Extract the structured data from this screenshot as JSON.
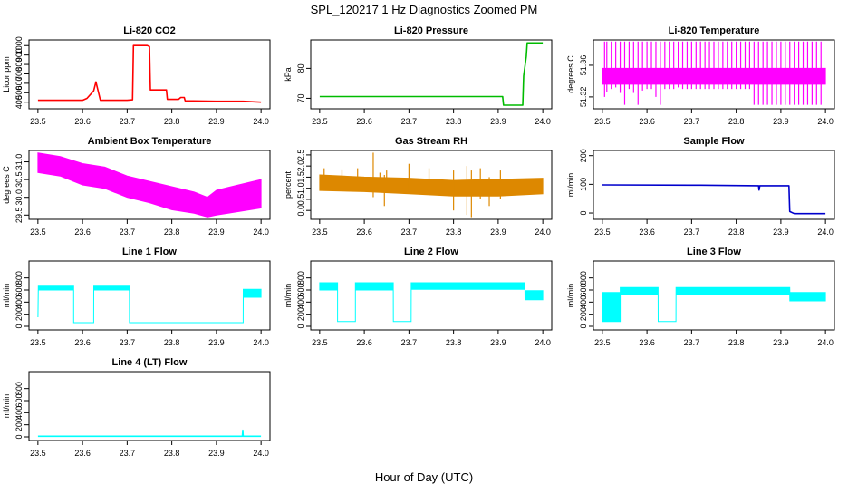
{
  "figure": {
    "title": "SPL_120217  1 Hz Diagnostics Zoomed PM",
    "xlabel": "Hour of Day (UTC)"
  },
  "chart_data": [
    {
      "id": "co2",
      "type": "line",
      "title": "Li-820 CO2",
      "ylabel": "Licor ppm",
      "color": "#ff0000",
      "xlim": [
        23.48,
        24.02
      ],
      "xticks": [
        23.5,
        23.6,
        23.7,
        23.8,
        23.9,
        24.0
      ],
      "xticklabels": [
        "23.5",
        "23.6",
        "23.7",
        "23.8",
        "23.9",
        "24.0"
      ],
      "ylim": [
        330,
        1060
      ],
      "yticks": [
        400,
        500,
        600,
        700,
        800,
        900,
        1000
      ],
      "yticklabels": [
        "400",
        "500",
        "600",
        "700",
        "800",
        "900",
        "1000"
      ],
      "series": [
        {
          "name": "CO2",
          "band": false,
          "x": [
            23.5,
            23.6,
            23.61,
            23.625,
            23.63,
            23.64,
            23.7,
            23.712,
            23.714,
            23.745,
            23.75,
            23.752,
            23.788,
            23.79,
            23.815,
            23.82,
            23.828,
            23.83,
            23.9,
            23.96,
            24.0
          ],
          "y": [
            420,
            420,
            440,
            520,
            615,
            420,
            420,
            425,
            1000,
            1000,
            990,
            530,
            530,
            430,
            430,
            450,
            450,
            415,
            410,
            410,
            400
          ]
        }
      ]
    },
    {
      "id": "pressure",
      "type": "line",
      "title": "Li-820 Pressure",
      "ylabel": "kPa",
      "color": "#00bb00",
      "xlim": [
        23.48,
        24.02
      ],
      "xticks": [
        23.5,
        23.6,
        23.7,
        23.8,
        23.9,
        24.0
      ],
      "xticklabels": [
        "23.5",
        "23.6",
        "23.7",
        "23.8",
        "23.9",
        "24.0"
      ],
      "ylim": [
        66.5,
        89.5
      ],
      "yticks": [
        70,
        80
      ],
      "yticklabels": [
        "70",
        "80"
      ],
      "series": [
        {
          "name": "Pressure",
          "band": false,
          "x": [
            23.5,
            23.91,
            23.912,
            23.955,
            23.957,
            23.963,
            23.965,
            24.0
          ],
          "y": [
            70.6,
            70.6,
            67.7,
            67.7,
            77.5,
            84.0,
            88.5,
            88.5
          ]
        }
      ]
    },
    {
      "id": "temp",
      "type": "line",
      "title": "Li-820 Temperature",
      "ylabel": "degrees C",
      "color": "#ff00ff",
      "xlim": [
        23.48,
        24.02
      ],
      "xticks": [
        23.5,
        23.6,
        23.7,
        23.8,
        23.9,
        24.0
      ],
      "xticklabels": [
        "23.5",
        "23.6",
        "23.7",
        "23.8",
        "23.9",
        "24.0"
      ],
      "ylim": [
        51.305,
        51.392
      ],
      "yticks": [
        51.32,
        51.36
      ],
      "yticklabels": [
        "51.32",
        "51.36"
      ],
      "series": [
        {
          "name": "band",
          "band": true,
          "x": [
            23.5,
            24.0
          ],
          "low": [
            51.336,
            51.336
          ],
          "high": [
            51.356,
            51.356
          ]
        }
      ],
      "spikes": {
        "x": [
          23.505,
          23.51,
          23.52,
          23.53,
          23.54,
          23.55,
          23.56,
          23.57,
          23.58,
          23.59,
          23.6,
          23.61,
          23.62,
          23.63,
          23.64,
          23.65,
          23.66,
          23.67,
          23.68,
          23.69,
          23.7,
          23.71,
          23.72,
          23.73,
          23.74,
          23.75,
          23.76,
          23.77,
          23.78,
          23.79,
          23.8,
          23.81,
          23.82,
          23.83,
          23.84,
          23.85,
          23.86,
          23.87,
          23.88,
          23.89,
          23.9,
          23.91,
          23.92,
          23.93,
          23.94,
          23.95,
          23.96,
          23.97,
          23.98,
          23.99
        ],
        "top": [
          51.39,
          51.39,
          51.39,
          51.39,
          51.39,
          51.39,
          51.39,
          51.39,
          51.39,
          51.39,
          51.39,
          51.39,
          51.39,
          51.39,
          51.39,
          51.39,
          51.39,
          51.39,
          51.39,
          51.39,
          51.39,
          51.39,
          51.39,
          51.39,
          51.39,
          51.39,
          51.39,
          51.39,
          51.39,
          51.39,
          51.39,
          51.39,
          51.39,
          51.39,
          51.39,
          51.39,
          51.39,
          51.39,
          51.39,
          51.39,
          51.39,
          51.39,
          51.39,
          51.39,
          51.39,
          51.39,
          51.39,
          51.39,
          51.39,
          51.39
        ],
        "bottom": [
          51.32,
          51.326,
          51.33,
          51.332,
          51.325,
          51.31,
          51.33,
          51.325,
          51.31,
          51.328,
          51.33,
          51.33,
          51.32,
          51.31,
          51.33,
          51.33,
          51.33,
          51.332,
          51.33,
          51.33,
          51.33,
          51.33,
          51.33,
          51.33,
          51.33,
          51.33,
          51.33,
          51.33,
          51.33,
          51.33,
          51.33,
          51.33,
          51.33,
          51.33,
          51.31,
          51.31,
          51.31,
          51.31,
          51.31,
          51.31,
          51.31,
          51.31,
          51.31,
          51.31,
          51.31,
          51.31,
          51.31,
          51.31,
          51.31,
          51.31
        ]
      }
    },
    {
      "id": "ambient",
      "type": "line",
      "title": "Ambient Box Temperature",
      "ylabel": "degrees C",
      "color": "#ff00ff",
      "xlim": [
        23.48,
        24.02
      ],
      "xticks": [
        23.5,
        23.6,
        23.7,
        23.8,
        23.9,
        24.0
      ],
      "xticklabels": [
        "23.5",
        "23.6",
        "23.7",
        "23.8",
        "23.9",
        "24.0"
      ],
      "ylim": [
        29.38,
        31.32
      ],
      "yticks": [
        29.5,
        30.0,
        30.5,
        31.0
      ],
      "yticklabels": [
        "29.5",
        "30.0",
        "30.5",
        "31.0"
      ],
      "series": [
        {
          "name": "band",
          "band": true,
          "x": [
            23.5,
            23.55,
            23.6,
            23.65,
            23.7,
            23.75,
            23.8,
            23.85,
            23.88,
            23.9,
            23.95,
            24.0
          ],
          "low": [
            30.7,
            30.6,
            30.35,
            30.25,
            30.0,
            29.85,
            29.65,
            29.55,
            29.45,
            29.5,
            29.6,
            29.7
          ],
          "high": [
            31.25,
            31.15,
            30.95,
            30.85,
            30.6,
            30.45,
            30.3,
            30.15,
            30.0,
            30.2,
            30.35,
            30.5
          ]
        }
      ]
    },
    {
      "id": "rh",
      "type": "line",
      "title": "Gas Stream RH",
      "ylabel": "percent",
      "color": "#dd8800",
      "xlim": [
        23.48,
        24.02
      ],
      "xticks": [
        23.5,
        23.6,
        23.7,
        23.8,
        23.9,
        24.0
      ],
      "xticklabels": [
        "23.5",
        "23.6",
        "23.7",
        "23.8",
        "23.9",
        "24.0"
      ],
      "ylim": [
        -0.4,
        2.7
      ],
      "yticks": [
        0.0,
        0.5,
        1.0,
        1.5,
        2.0,
        2.5
      ],
      "yticklabels": [
        "0.0",
        "0.5",
        "1.0",
        "1.5",
        "2.0",
        "2.5"
      ],
      "series": [
        {
          "name": "band",
          "band": true,
          "x": [
            23.5,
            23.6,
            23.7,
            23.8,
            23.9,
            24.0
          ],
          "low": [
            0.9,
            0.85,
            0.75,
            0.65,
            0.65,
            0.75
          ],
          "high": [
            1.6,
            1.5,
            1.45,
            1.35,
            1.4,
            1.45
          ]
        }
      ],
      "spikes": {
        "x": [
          23.51,
          23.55,
          23.585,
          23.62,
          23.635,
          23.645,
          23.65,
          23.7,
          23.745,
          23.8,
          23.83,
          23.84,
          23.86,
          23.88,
          23.905
        ],
        "top": [
          1.9,
          1.85,
          1.9,
          2.6,
          1.7,
          1.6,
          1.8,
          2.1,
          1.9,
          1.8,
          2.0,
          1.8,
          1.9,
          1.5,
          1.8
        ],
        "bottom": [
          1.0,
          1.0,
          0.95,
          0.6,
          0.95,
          0.2,
          0.9,
          0.9,
          0.9,
          0.0,
          -0.2,
          -0.3,
          0.5,
          0.2,
          0.5
        ]
      }
    },
    {
      "id": "sample",
      "type": "line",
      "title": "Sample Flow",
      "ylabel": "ml/min",
      "color": "#0000cc",
      "xlim": [
        23.48,
        24.02
      ],
      "xticks": [
        23.5,
        23.6,
        23.7,
        23.8,
        23.9,
        24.0
      ],
      "xticklabels": [
        "23.5",
        "23.6",
        "23.7",
        "23.8",
        "23.9",
        "24.0"
      ],
      "ylim": [
        -22,
        218
      ],
      "yticks": [
        0,
        100,
        200
      ],
      "yticklabels": [
        "0",
        "100",
        "200"
      ],
      "series": [
        {
          "name": "Sample Flow",
          "band": false,
          "x": [
            23.5,
            23.7,
            23.72,
            23.85,
            23.851,
            23.853,
            23.855,
            23.918,
            23.92,
            23.93,
            24.0
          ],
          "y": [
            98,
            97,
            97,
            95,
            80,
            95,
            95,
            95,
            5,
            -2,
            -2
          ]
        }
      ]
    },
    {
      "id": "line1",
      "type": "line",
      "title": "Line 1 Flow",
      "ylabel": "ml/min",
      "color": "#00ffff",
      "xlim": [
        23.48,
        24.02
      ],
      "xticks": [
        23.5,
        23.6,
        23.7,
        23.8,
        23.9,
        24.0
      ],
      "xticklabels": [
        "23.5",
        "23.6",
        "23.7",
        "23.8",
        "23.9",
        "24.0"
      ],
      "ylim": [
        -60,
        1080
      ],
      "yticks": [
        0,
        200,
        400,
        600,
        800
      ],
      "yticklabels": [
        "0",
        "200",
        "400",
        "600",
        "800"
      ],
      "series": [
        {
          "name": "band",
          "band": true,
          "x": [
            23.5,
            23.501,
            23.58,
            23.5801,
            23.625,
            23.6251,
            23.705,
            23.7051,
            23.96,
            23.9601,
            24.0
          ],
          "low": [
            150,
            600,
            600,
            60,
            60,
            600,
            600,
            60,
            60,
            480,
            480
          ],
          "high": [
            150,
            680,
            680,
            60,
            60,
            680,
            680,
            60,
            60,
            610,
            610
          ]
        }
      ]
    },
    {
      "id": "line2",
      "type": "line",
      "title": "Line 2 Flow",
      "ylabel": "ml/min",
      "color": "#00ffff",
      "xlim": [
        23.48,
        24.02
      ],
      "xticks": [
        23.5,
        23.6,
        23.7,
        23.8,
        23.9,
        24.0
      ],
      "xticklabels": [
        "23.5",
        "23.6",
        "23.7",
        "23.8",
        "23.9",
        "24.0"
      ],
      "ylim": [
        -60,
        1080
      ],
      "yticks": [
        0,
        200,
        400,
        600,
        800
      ],
      "yticklabels": [
        "0",
        "200",
        "400",
        "600",
        "800"
      ],
      "series": [
        {
          "name": "band",
          "band": true,
          "x": [
            23.5,
            23.54,
            23.5401,
            23.58,
            23.5801,
            23.665,
            23.6651,
            23.705,
            23.7051,
            23.96,
            23.9601,
            24.0
          ],
          "low": [
            600,
            600,
            80,
            80,
            600,
            600,
            80,
            80,
            610,
            610,
            440,
            440
          ],
          "high": [
            720,
            720,
            80,
            80,
            720,
            720,
            80,
            80,
            720,
            720,
            590,
            590
          ]
        }
      ]
    },
    {
      "id": "line3",
      "type": "line",
      "title": "Line 3 Flow",
      "ylabel": "ml/min",
      "color": "#00ffff",
      "xlim": [
        23.48,
        24.02
      ],
      "xticks": [
        23.5,
        23.6,
        23.7,
        23.8,
        23.9,
        24.0
      ],
      "xticklabels": [
        "23.5",
        "23.6",
        "23.7",
        "23.8",
        "23.9",
        "24.0"
      ],
      "ylim": [
        -60,
        1080
      ],
      "yticks": [
        0,
        200,
        400,
        600,
        800
      ],
      "yticklabels": [
        "0",
        "200",
        "400",
        "600",
        "800"
      ],
      "series": [
        {
          "name": "band",
          "band": true,
          "x": [
            23.5,
            23.501,
            23.54,
            23.5401,
            23.625,
            23.6251,
            23.665,
            23.6651,
            23.92,
            23.9201,
            24.0
          ],
          "low": [
            80,
            80,
            80,
            530,
            530,
            80,
            80,
            530,
            530,
            420,
            420
          ],
          "high": [
            80,
            560,
            560,
            640,
            640,
            80,
            80,
            640,
            640,
            560,
            560
          ]
        }
      ]
    },
    {
      "id": "line4",
      "type": "line",
      "title": "Line 4 (LT) Flow",
      "ylabel": "ml/min",
      "color": "#00ffff",
      "xlim": [
        23.48,
        24.02
      ],
      "xticks": [
        23.5,
        23.6,
        23.7,
        23.8,
        23.9,
        24.0
      ],
      "xticklabels": [
        "23.5",
        "23.6",
        "23.7",
        "23.8",
        "23.9",
        "24.0"
      ],
      "ylim": [
        -60,
        1080
      ],
      "yticks": [
        0,
        200,
        400,
        600,
        800
      ],
      "yticklabels": [
        "0",
        "200",
        "400",
        "600",
        "800"
      ],
      "series": [
        {
          "name": "Line 4 Flow",
          "band": false,
          "x": [
            23.5,
            23.958,
            23.959,
            23.96,
            23.961,
            24.0
          ],
          "y": [
            10,
            10,
            110,
            10,
            10,
            10
          ]
        }
      ]
    }
  ]
}
